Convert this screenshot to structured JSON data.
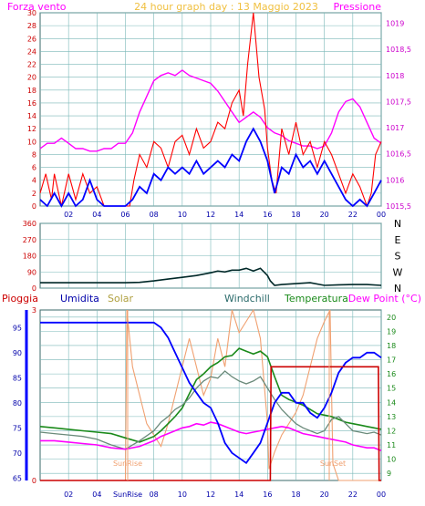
{
  "header": {
    "left_title": "Forza vento",
    "center_title": "24 hour graph day : 13 Maggio 2023",
    "right_title": "Pressione"
  },
  "panel3_labels": {
    "pioggia": "Pioggia",
    "umidita": "Umidita",
    "solar": "Solar",
    "windchill": "Windchill",
    "temperatura": "Temperatura",
    "dewpoint": "Dew Point (°C)"
  },
  "annotations": {
    "sunrise": "SunRise",
    "sunset": "SunSet"
  },
  "colors": {
    "wind_gust": "#ff0000",
    "wind_avg": "#0000ff",
    "pressure": "#ff00ff",
    "direction": "#002828",
    "humidity": "#0000ff",
    "solar": "#f0a070",
    "windchill": "#6a8a7a",
    "temperature": "#1a8a1a",
    "dewpoint": "#ff00ff",
    "rain": "#cc0000",
    "grid": "#7ab8b8"
  },
  "chart_data": [
    {
      "type": "line",
      "name": "wind-pressure",
      "x_ticks": [
        "02",
        "04",
        "06",
        "08",
        "10",
        "12",
        "14",
        "16",
        "18",
        "20",
        "22",
        "00"
      ],
      "xlim": [
        0,
        24
      ],
      "y_left_ticks": [
        0,
        2,
        4,
        6,
        8,
        10,
        12,
        14,
        16,
        18,
        20,
        22,
        24,
        26,
        28,
        30
      ],
      "ylim_left": [
        0,
        30
      ],
      "y_right_ticks": [
        "1015,5",
        "1016",
        "1016,5",
        "1017",
        "1017,5",
        "1018",
        "1018,5",
        "1019"
      ],
      "ylim_right": [
        1015.5,
        1019.2
      ],
      "grid": true,
      "series": [
        {
          "axis": "left",
          "x": [
            0,
            0.4,
            0.8,
            1,
            1.5,
            2,
            2.5,
            3,
            3.5,
            4,
            4.5,
            5,
            5.5,
            6,
            6.3,
            6.6,
            7,
            7.5,
            8,
            8.5,
            9,
            9.5,
            10,
            10.5,
            11,
            11.5,
            12,
            12.5,
            13,
            13.5,
            14,
            14.3,
            14.6,
            15,
            15.4,
            15.8,
            16,
            16.3,
            16.6,
            17,
            17.5,
            18,
            18.5,
            19,
            19.5,
            20,
            20.5,
            21,
            21.5,
            22,
            22.5,
            23,
            23.3,
            23.6,
            24
          ],
          "values": [
            2,
            5,
            1,
            5,
            0,
            5,
            1,
            5,
            2,
            3,
            0,
            0,
            0,
            0,
            0,
            4,
            8,
            6,
            10,
            9,
            6,
            10,
            11,
            8,
            12,
            9,
            10,
            13,
            12,
            16,
            18,
            14,
            22,
            30,
            20,
            15,
            9,
            4,
            2,
            12,
            8,
            13,
            8,
            10,
            6,
            10,
            8,
            5,
            2,
            5,
            3,
            0,
            2,
            8,
            10
          ]
        },
        {
          "axis": "left",
          "x": [
            0,
            0.5,
            1,
            1.5,
            2,
            2.5,
            3,
            3.5,
            4,
            4.5,
            5,
            5.5,
            6,
            6.5,
            7,
            7.5,
            8,
            8.5,
            9,
            9.5,
            10,
            10.5,
            11,
            11.5,
            12,
            12.5,
            13,
            13.5,
            14,
            14.5,
            15,
            15.5,
            16,
            16.5,
            17,
            17.5,
            18,
            18.5,
            19,
            19.5,
            20,
            20.5,
            21,
            21.5,
            22,
            22.5,
            23,
            23.5,
            24
          ],
          "values": [
            1,
            0,
            2,
            0,
            2,
            0,
            1,
            4,
            1,
            0,
            0,
            0,
            0,
            1,
            3,
            2,
            5,
            4,
            6,
            5,
            6,
            5,
            7,
            5,
            6,
            7,
            6,
            8,
            7,
            10,
            12,
            10,
            7,
            2,
            6,
            5,
            8,
            6,
            7,
            5,
            7,
            5,
            3,
            1,
            0,
            1,
            0,
            2,
            4
          ]
        },
        {
          "axis": "right",
          "x": [
            0,
            0.5,
            1,
            1.5,
            2,
            2.5,
            3,
            3.5,
            4,
            4.5,
            5,
            5.5,
            6,
            6.5,
            7,
            7.5,
            8,
            8.5,
            9,
            9.5,
            10,
            10.5,
            11,
            11.5,
            12,
            12.5,
            13,
            13.5,
            14,
            14.5,
            15,
            15.5,
            16,
            16.5,
            17,
            17.5,
            18,
            18.5,
            19,
            19.5,
            20,
            20.5,
            21,
            21.5,
            22,
            22.5,
            23,
            23.5,
            24
          ],
          "values": [
            1016.6,
            1016.7,
            1016.7,
            1016.8,
            1016.7,
            1016.6,
            1016.6,
            1016.55,
            1016.55,
            1016.6,
            1016.6,
            1016.7,
            1016.7,
            1016.9,
            1017.3,
            1017.6,
            1017.9,
            1018.0,
            1018.05,
            1018.0,
            1018.1,
            1018.0,
            1017.95,
            1017.9,
            1017.85,
            1017.7,
            1017.5,
            1017.3,
            1017.1,
            1017.2,
            1017.3,
            1017.2,
            1017.0,
            1016.9,
            1016.85,
            1016.75,
            1016.7,
            1016.65,
            1016.65,
            1016.6,
            1016.65,
            1016.9,
            1017.3,
            1017.5,
            1017.55,
            1017.4,
            1017.1,
            1016.8,
            1016.7
          ]
        }
      ]
    },
    {
      "type": "line",
      "name": "wind-direction",
      "y_ticks": [
        0,
        90,
        180,
        270,
        360
      ],
      "ylim": [
        0,
        360
      ],
      "y_right_labels": [
        "N",
        "W",
        "S",
        "E",
        "N"
      ],
      "x": [
        0,
        1,
        2,
        3,
        4,
        5,
        6,
        7,
        8,
        9,
        10,
        11,
        12,
        12.5,
        13,
        13.5,
        14,
        14.5,
        15,
        15.5,
        16,
        16.2,
        16.5,
        17,
        18,
        19,
        20,
        21,
        22,
        23,
        24
      ],
      "values": [
        30,
        30,
        30,
        30,
        30,
        30,
        30,
        32,
        40,
        50,
        60,
        70,
        85,
        95,
        90,
        100,
        100,
        110,
        95,
        110,
        70,
        40,
        15,
        20,
        25,
        30,
        15,
        18,
        20,
        20,
        15
      ]
    },
    {
      "type": "line",
      "name": "weather",
      "y_left_ticks": [
        65,
        70,
        75,
        80,
        85,
        90,
        95
      ],
      "ylim_left": [
        64.5,
        98.5
      ],
      "y_right_ticks": [
        9,
        10,
        11,
        12,
        13,
        14,
        15,
        16,
        17,
        18,
        19,
        20
      ],
      "ylim_right": [
        8.5,
        20.5
      ],
      "rain_ticks": [
        0,
        3
      ],
      "series": [
        {
          "axis": "left",
          "x": [
            0,
            1,
            2,
            3,
            4,
            5,
            6,
            7,
            8,
            8.5,
            9,
            9.5,
            10,
            10.5,
            11,
            11.5,
            12,
            12.5,
            13,
            13.5,
            14,
            14.5,
            15,
            15.5,
            16,
            16.5,
            17,
            17.5,
            18,
            18.5,
            19,
            19.5,
            20,
            20.5,
            21,
            21.5,
            22,
            22.5,
            23,
            23.5,
            24
          ],
          "values": [
            96,
            96,
            96,
            96,
            96,
            96,
            96,
            96,
            96,
            95,
            93,
            90,
            87,
            84,
            82,
            80,
            79,
            76,
            72,
            70,
            69,
            68,
            70,
            72,
            76,
            80,
            82,
            82,
            80,
            80,
            78,
            77,
            79,
            82,
            86,
            88,
            89,
            89,
            90,
            90,
            89
          ]
        },
        {
          "axis": "left",
          "x": [
            0,
            1,
            2,
            3,
            4,
            5,
            5.5,
            6,
            6.1,
            6.5,
            7,
            7.5,
            8,
            8.5,
            9,
            9.5,
            10,
            10.5,
            11,
            11.5,
            12,
            12.5,
            13,
            13.5,
            14,
            14.5,
            15,
            15.5,
            16,
            16.1,
            16.5,
            17,
            17.5,
            18,
            18.5,
            19,
            19.5,
            20,
            20.4,
            20.6,
            21,
            22,
            23,
            24
          ],
          "values": [
            0,
            0,
            0,
            0,
            0,
            0,
            0,
            0,
            3,
            2,
            1.5,
            1,
            0.8,
            0.6,
            1,
            1.5,
            2,
            2.5,
            2,
            1.5,
            1.8,
            2.5,
            2,
            3,
            2.6,
            2.8,
            3,
            2.5,
            1,
            0.2,
            0.5,
            0.8,
            1,
            1.2,
            1.5,
            2,
            2.5,
            2.8,
            3,
            0.3,
            0,
            0,
            0,
            0
          ]
        },
        {
          "axis": "right",
          "x": [
            0,
            1,
            2,
            3,
            4,
            5,
            6,
            7,
            8,
            8.5,
            9,
            9.5,
            10,
            10.5,
            11,
            11.5,
            12,
            12.5,
            13,
            13.5,
            14,
            14.5,
            15,
            15.5,
            16,
            16.5,
            17,
            17.5,
            18,
            18.5,
            19,
            19.5,
            20,
            20.5,
            21,
            21.5,
            22,
            22.5,
            23,
            23.5,
            24
          ],
          "values": [
            11.9,
            11.8,
            11.7,
            11.6,
            11.4,
            11.0,
            10.7,
            11.3,
            12.0,
            12.6,
            13.0,
            13.5,
            13.8,
            14.3,
            15.0,
            15.5,
            15.8,
            15.7,
            16.2,
            15.8,
            15.5,
            15.3,
            15.5,
            15.8,
            15.0,
            14.2,
            13.5,
            13.0,
            12.5,
            12.2,
            12.0,
            11.8,
            12.0,
            12.8,
            13.0,
            12.5,
            12.0,
            11.9,
            11.8,
            11.9,
            11.7
          ]
        },
        {
          "axis": "right",
          "x": [
            0,
            1,
            2,
            3,
            4,
            5,
            6,
            7,
            8,
            8.5,
            9,
            9.5,
            10,
            10.5,
            11,
            11.5,
            12,
            12.5,
            13,
            13.5,
            14,
            14.5,
            15,
            15.5,
            16,
            16.5,
            17,
            17.5,
            18,
            18.5,
            19,
            19.5,
            20,
            20.5,
            21,
            21.5,
            22,
            22.5,
            23,
            23.5,
            24
          ],
          "values": [
            12.3,
            12.2,
            12.1,
            12.0,
            11.9,
            11.8,
            11.5,
            11.2,
            11.6,
            12.0,
            12.5,
            13.0,
            13.6,
            14.6,
            15.6,
            16.0,
            16.5,
            16.8,
            17.2,
            17.3,
            17.8,
            17.6,
            17.4,
            17.6,
            17.2,
            15.8,
            14.5,
            14.2,
            14.0,
            13.8,
            13.5,
            13.2,
            13.1,
            13.0,
            12.8,
            12.6,
            12.5,
            12.4,
            12.3,
            12.2,
            12.1
          ]
        },
        {
          "axis": "right",
          "x": [
            0,
            1,
            2,
            3,
            4,
            5,
            6,
            7,
            8,
            8.5,
            9,
            9.5,
            10,
            10.5,
            11,
            11.5,
            12,
            12.5,
            13,
            13.5,
            14,
            14.5,
            15,
            15.5,
            16,
            16.5,
            17,
            17.5,
            18,
            18.5,
            19,
            19.5,
            20,
            20.5,
            21,
            21.5,
            22,
            22.5,
            23,
            23.5,
            24
          ],
          "values": [
            11.3,
            11.3,
            11.2,
            11.1,
            11.0,
            10.8,
            10.7,
            10.9,
            11.3,
            11.6,
            11.8,
            12.0,
            12.2,
            12.3,
            12.5,
            12.4,
            12.6,
            12.5,
            12.3,
            12.1,
            11.9,
            11.8,
            11.9,
            12.0,
            12.1,
            12.2,
            12.3,
            12.2,
            12.0,
            11.8,
            11.7,
            11.6,
            11.5,
            11.4,
            11.3,
            11.2,
            11.0,
            10.9,
            10.8,
            10.8,
            10.6
          ]
        },
        {
          "axis": "rain",
          "x": [
            0,
            16.2,
            16.25,
            23.8,
            23.85,
            24
          ],
          "values": [
            0,
            0,
            2,
            2,
            0,
            0
          ]
        }
      ]
    }
  ]
}
